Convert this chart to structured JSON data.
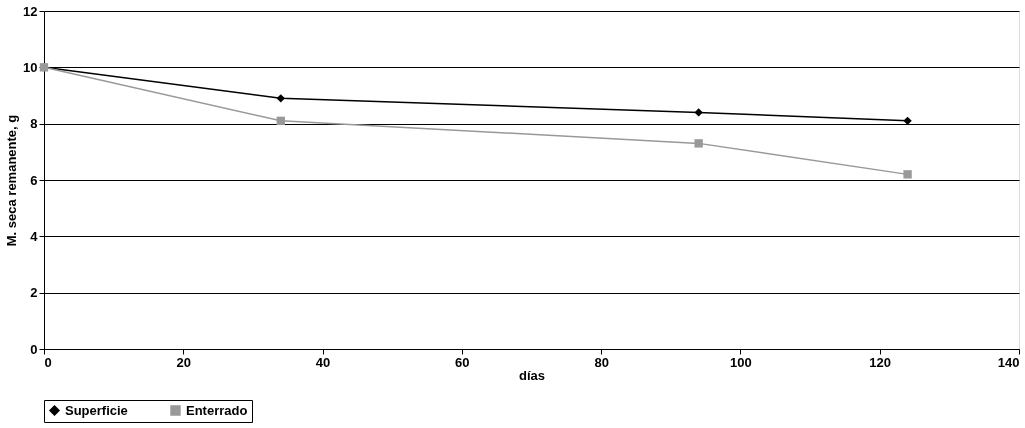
{
  "chart_data": {
    "type": "line",
    "xlabel": "días",
    "ylabel": "M. seca remanente, g",
    "x": [
      0,
      34,
      94,
      124
    ],
    "series": [
      {
        "name": "Superficie",
        "color": "#000000",
        "marker": "diamond",
        "values": [
          10,
          8.9,
          8.4,
          8.1
        ]
      },
      {
        "name": "Enterrado",
        "color": "#999999",
        "marker": "square",
        "values": [
          10,
          8.1,
          7.3,
          6.2
        ]
      }
    ],
    "xlim": [
      0,
      140
    ],
    "xticks": [
      0,
      20,
      40,
      60,
      80,
      100,
      120,
      140
    ],
    "ylim": [
      0,
      12
    ],
    "yticks": [
      0,
      2,
      4,
      6,
      8,
      10,
      12
    ],
    "grid": "y",
    "legend": "bottom",
    "line_style": "solid"
  }
}
